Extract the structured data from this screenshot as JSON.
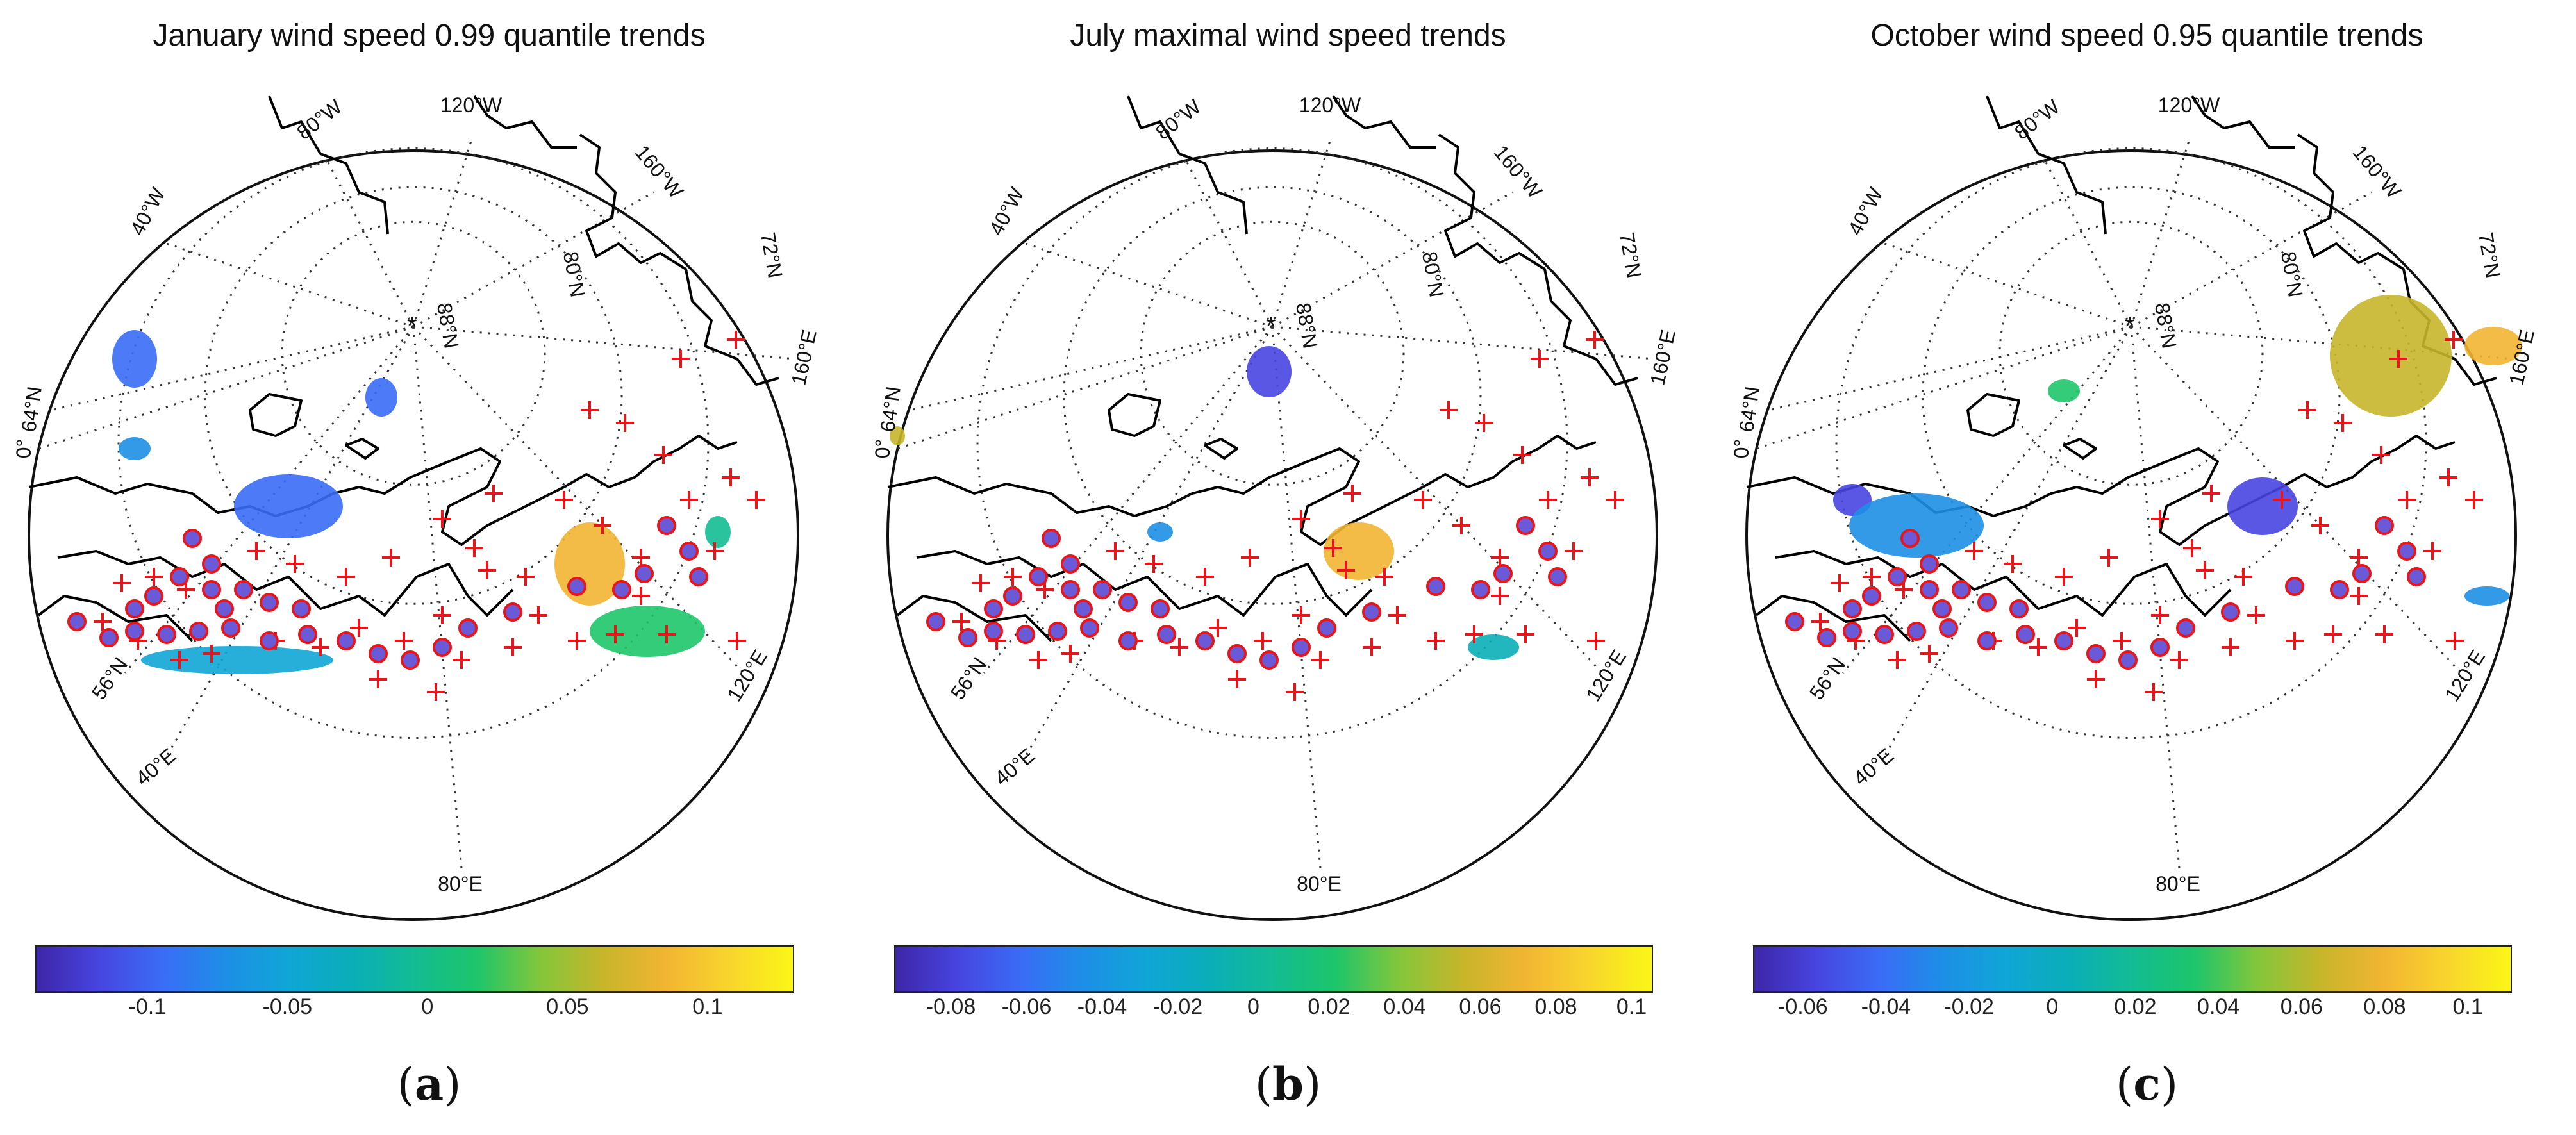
{
  "panels": [
    {
      "id": "a",
      "title": "January wind speed 0.99 quantile trends",
      "label_letter": "a",
      "lon_labels": [
        "80°W",
        "120°W",
        "40°W",
        "160°W",
        "64°N",
        "0°",
        "56°N",
        "40°E",
        "80°E",
        "120°E",
        "160°E"
      ],
      "lat_labels": [
        "72°N",
        "80°N",
        "88°N"
      ],
      "colorbar": {
        "ticks": [
          "-0.1",
          "-0.05",
          "0",
          "0.05",
          "0.1"
        ],
        "tick_values": [
          -0.1,
          -0.05,
          0,
          0.05,
          0.1
        ],
        "range": [
          -0.14,
          0.13
        ]
      }
    },
    {
      "id": "b",
      "title": "July maximal wind speed trends",
      "label_letter": "b",
      "lon_labels": [
        "80°W",
        "120°W",
        "40°W",
        "160°W",
        "64°N",
        "0°",
        "56°N",
        "40°E",
        "80°E",
        "120°E",
        "160°E"
      ],
      "lat_labels": [
        "72°N",
        "80°N",
        "88°N"
      ],
      "colorbar": {
        "ticks": [
          "-0.08",
          "-0.06",
          "-0.04",
          "-0.02",
          "0",
          "0.02",
          "0.04",
          "0.06",
          "0.08",
          "0.1"
        ],
        "tick_values": [
          -0.08,
          -0.06,
          -0.04,
          -0.02,
          0,
          0.02,
          0.04,
          0.06,
          0.08,
          0.1
        ],
        "range": [
          -0.095,
          0.105
        ]
      }
    },
    {
      "id": "c",
      "title": "October wind speed 0.95 quantile trends",
      "label_letter": "c",
      "lon_labels": [
        "80°W",
        "120°W",
        "40°W",
        "160°W",
        "64°N",
        "0°",
        "56°N",
        "40°E",
        "80°E",
        "120°E",
        "160°E"
      ],
      "lat_labels": [
        "72°N",
        "80°N",
        "88°N"
      ],
      "colorbar": {
        "ticks": [
          "-0.06",
          "-0.04",
          "-0.02",
          "0",
          "0.02",
          "0.04",
          "0.06",
          "0.08",
          "0.1"
        ],
        "tick_values": [
          -0.06,
          -0.04,
          -0.02,
          0,
          0.02,
          0.04,
          0.06,
          0.08,
          0.1
        ],
        "range": [
          -0.072,
          0.11
        ]
      }
    }
  ],
  "colors": {
    "cmap": [
      "#3e26a8",
      "#4745e0",
      "#3a6cf6",
      "#1d8fe6",
      "#10a6d6",
      "#0aaeb8",
      "#12bc93",
      "#1ec56a",
      "#84c63b",
      "#c7b52a",
      "#f2b532",
      "#f8d52d",
      "#faf616"
    ],
    "station_cross": "#e8161b",
    "station_fill": "#6a5ad8",
    "station_edge": "#e8161b",
    "coast": "#000000",
    "grid": "#333333"
  }
}
